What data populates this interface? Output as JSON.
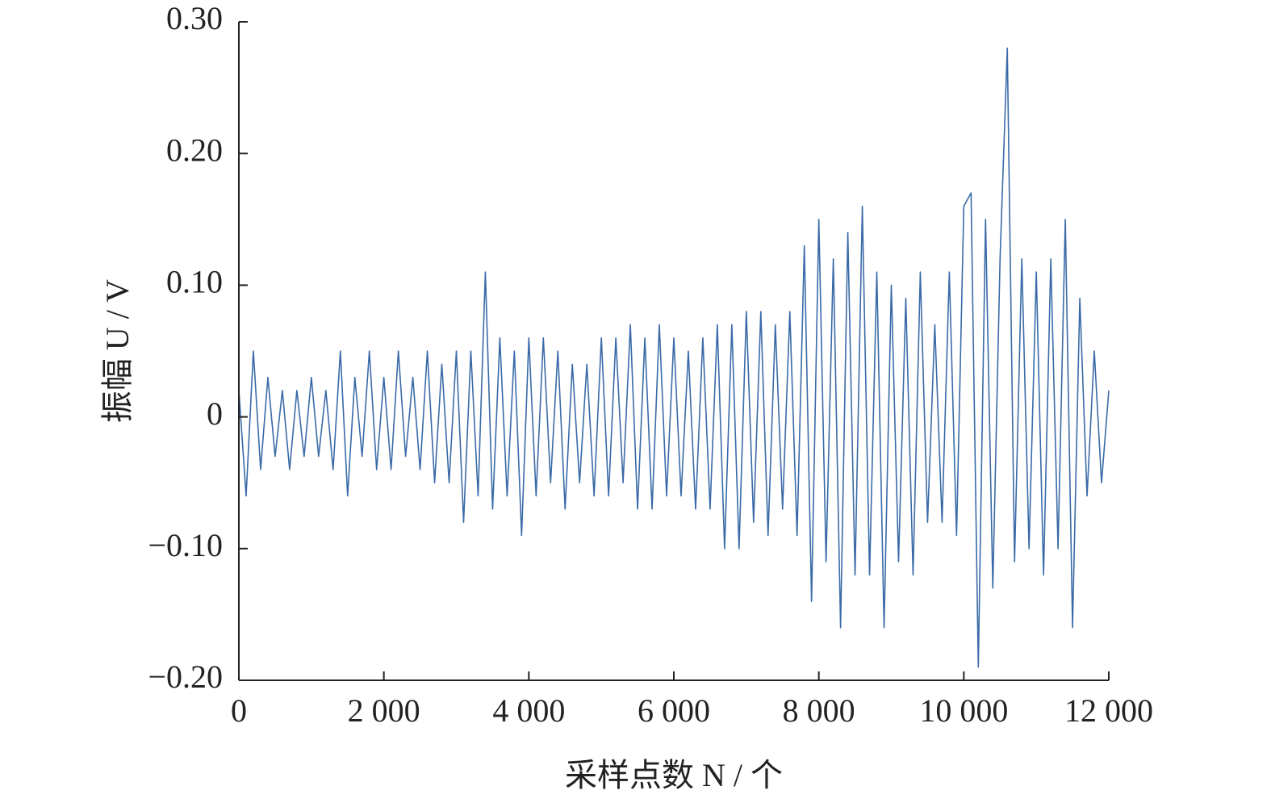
{
  "chart_data": {
    "type": "line",
    "xlabel": "采样点数 N / 个",
    "ylabel": "振幅 U / V",
    "x": [
      0,
      100,
      200,
      300,
      400,
      500,
      600,
      700,
      800,
      900,
      1000,
      1100,
      1200,
      1300,
      1400,
      1500,
      1600,
      1700,
      1800,
      1900,
      2000,
      2100,
      2200,
      2300,
      2400,
      2500,
      2600,
      2700,
      2800,
      2900,
      3000,
      3100,
      3200,
      3300,
      3400,
      3500,
      3600,
      3700,
      3800,
      3900,
      4000,
      4100,
      4200,
      4300,
      4400,
      4500,
      4600,
      4700,
      4800,
      4900,
      5000,
      5100,
      5200,
      5300,
      5400,
      5500,
      5600,
      5700,
      5800,
      5900,
      6000,
      6100,
      6200,
      6300,
      6400,
      6500,
      6600,
      6700,
      6800,
      6900,
      7000,
      7100,
      7200,
      7300,
      7400,
      7500,
      7600,
      7700,
      7800,
      7900,
      8000,
      8100,
      8200,
      8300,
      8400,
      8500,
      8600,
      8700,
      8800,
      8900,
      9000,
      9100,
      9200,
      9300,
      9400,
      9500,
      9600,
      9700,
      9800,
      9900,
      10000,
      10100,
      10200,
      10300,
      10400,
      10500,
      10600,
      10700,
      10800,
      10900,
      11000,
      11100,
      11200,
      11300,
      11400,
      11500,
      11600,
      11700,
      11800,
      11900,
      12000
    ],
    "series": [
      {
        "color": "#3a6aa8",
        "values": [
          0.02,
          -0.06,
          0.05,
          -0.04,
          0.03,
          -0.03,
          0.02,
          -0.04,
          0.02,
          -0.03,
          0.03,
          -0.03,
          0.02,
          -0.04,
          0.05,
          -0.06,
          0.03,
          -0.03,
          0.05,
          -0.04,
          0.03,
          -0.04,
          0.05,
          -0.03,
          0.03,
          -0.04,
          0.05,
          -0.05,
          0.04,
          -0.05,
          0.05,
          -0.08,
          0.05,
          -0.06,
          0.11,
          -0.07,
          0.06,
          -0.06,
          0.05,
          -0.09,
          0.06,
          -0.06,
          0.06,
          -0.05,
          0.05,
          -0.07,
          0.04,
          -0.05,
          0.04,
          -0.06,
          0.06,
          -0.06,
          0.06,
          -0.05,
          0.07,
          -0.07,
          0.06,
          -0.07,
          0.07,
          -0.06,
          0.06,
          -0.06,
          0.05,
          -0.07,
          0.06,
          -0.07,
          0.07,
          -0.1,
          0.07,
          -0.1,
          0.08,
          -0.08,
          0.08,
          -0.09,
          0.07,
          -0.07,
          0.08,
          -0.09,
          0.13,
          -0.14,
          0.15,
          -0.11,
          0.12,
          -0.16,
          0.14,
          -0.12,
          0.16,
          -0.12,
          0.11,
          -0.16,
          0.1,
          -0.11,
          0.09,
          -0.12,
          0.11,
          -0.08,
          0.07,
          -0.08,
          0.11,
          -0.09,
          0.16,
          0.17,
          -0.19,
          0.15,
          -0.13,
          0.12,
          0.28,
          -0.11,
          0.12,
          -0.1,
          0.11,
          -0.12,
          0.12,
          -0.1,
          0.15,
          -0.16,
          0.09,
          -0.06,
          0.05,
          -0.05,
          0.02
        ]
      }
    ],
    "xlim": [
      0,
      12000
    ],
    "ylim": [
      -0.2,
      0.3
    ],
    "xticks": [
      0,
      {
        "value": 2000,
        "label": "2 000"
      },
      {
        "value": 4000,
        "label": "4 000"
      },
      {
        "value": 6000,
        "label": "6 000"
      },
      {
        "value": 8000,
        "label": "8 000"
      },
      {
        "value": 10000,
        "label": "10 000"
      },
      {
        "value": 12000,
        "label": "12 000"
      }
    ],
    "yticks": [
      {
        "value": -0.2,
        "label": "−0.20"
      },
      {
        "value": -0.1,
        "label": "−0.10"
      },
      0,
      {
        "value": 0.1,
        "label": "0.10"
      },
      {
        "value": 0.2,
        "label": "0.20"
      },
      {
        "value": 0.3,
        "label": "0.30"
      }
    ]
  }
}
